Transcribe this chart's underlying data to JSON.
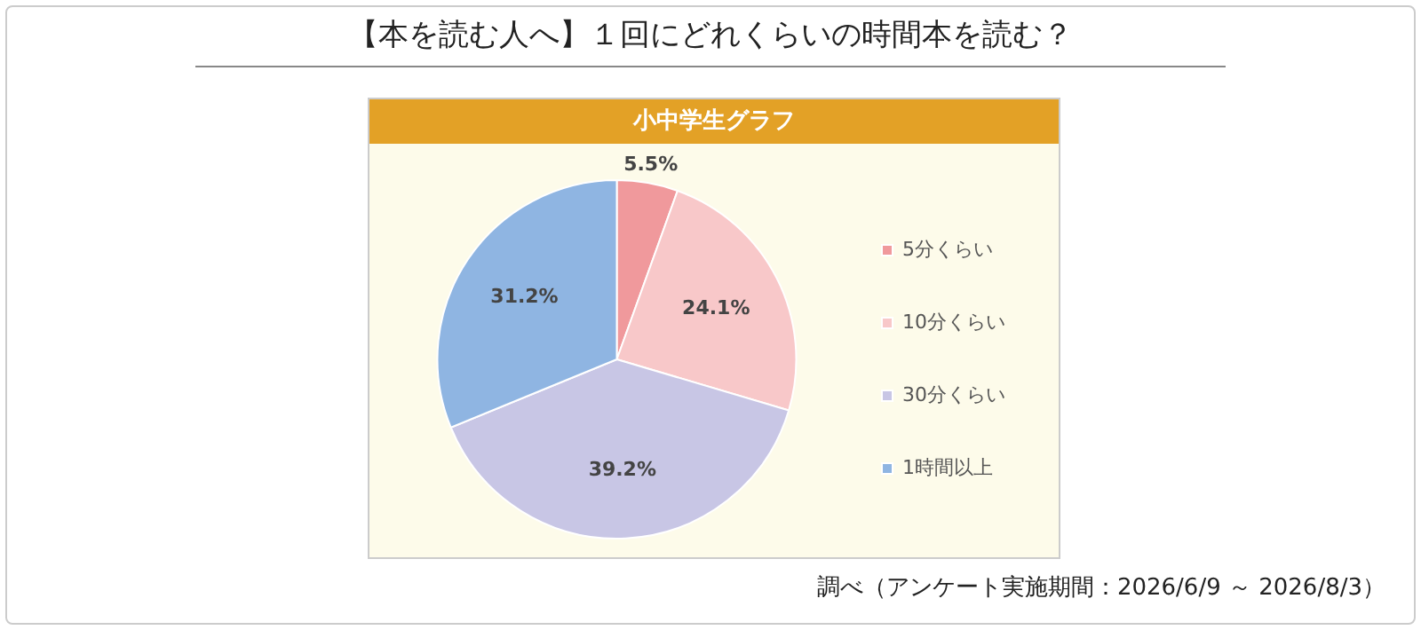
{
  "chart_data": {
    "type": "pie",
    "title": "【本を読む人へ】１回にどれくらいの時間本を読む？",
    "subtitle": "小中学生グラフ",
    "categories": [
      "5分くらい",
      "10分くらい",
      "30分くらい",
      "1時間以上"
    ],
    "values": [
      5.5,
      24.1,
      39.2,
      31.2
    ],
    "colors": [
      "#f0999c",
      "#f8c8c9",
      "#c8c6e5",
      "#8fb5e2"
    ],
    "value_labels": [
      "5.5%",
      "24.1%",
      "39.2%",
      "31.2%"
    ],
    "legend": "right",
    "annotations": [
      "調べ（アンケート実施期間：2026/6/9 ～ 2026/8/3）"
    ]
  }
}
